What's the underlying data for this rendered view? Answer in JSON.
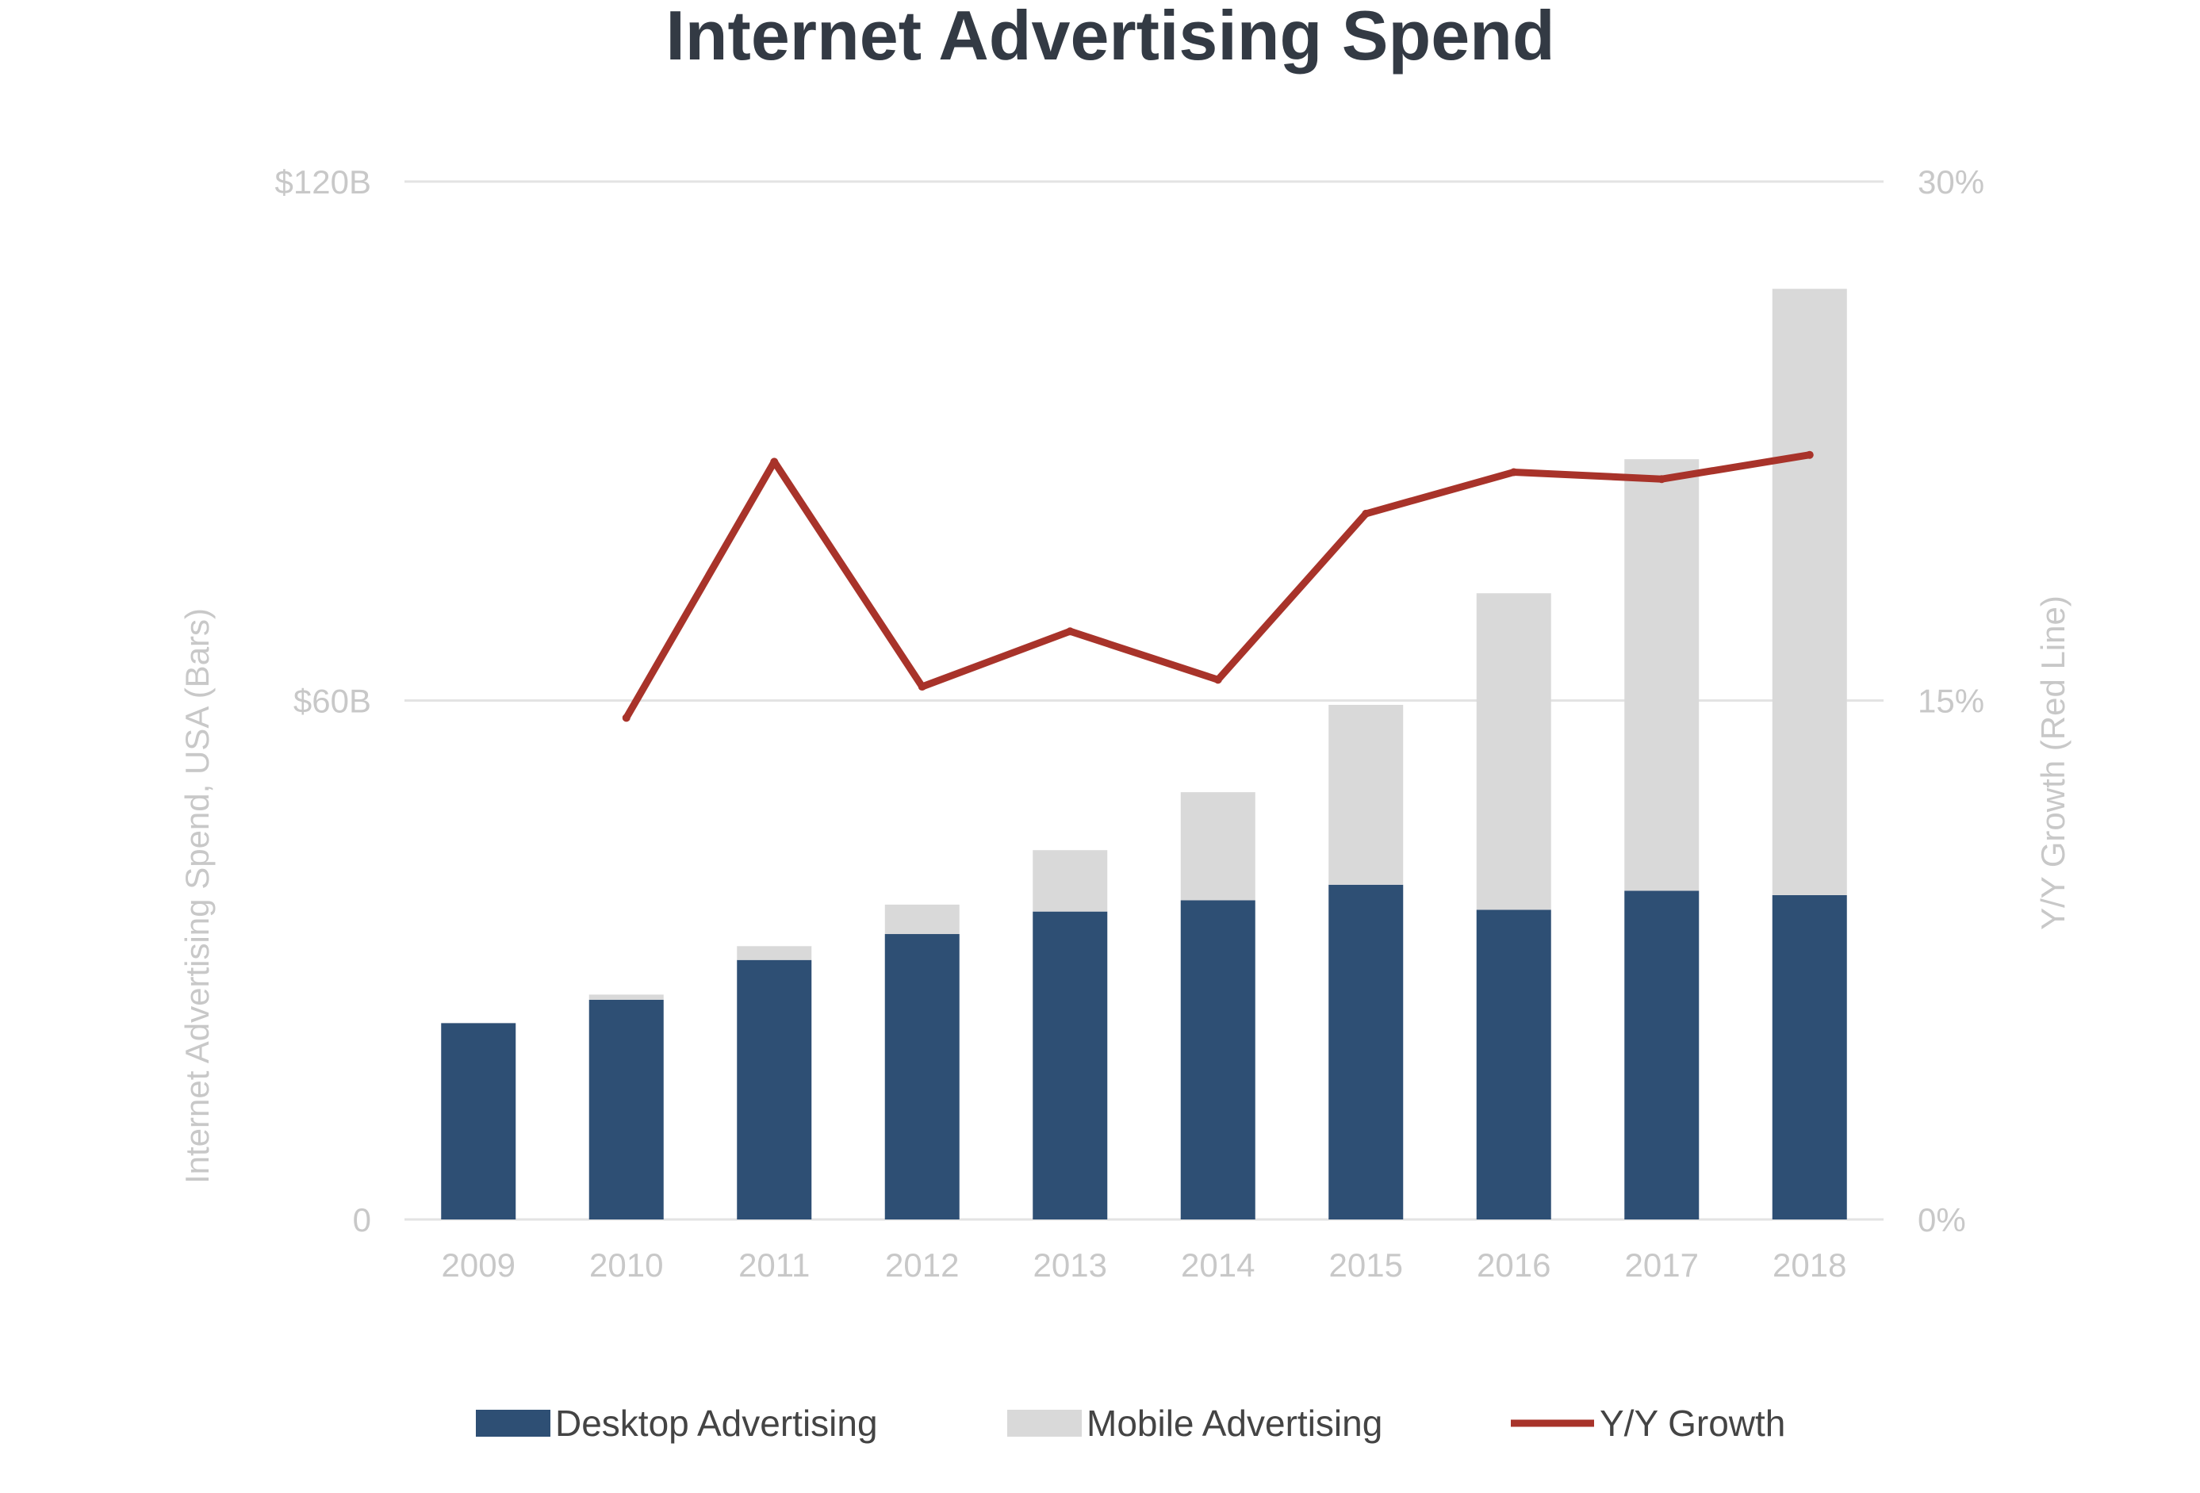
{
  "chart_data": {
    "type": "bar",
    "stacked": true,
    "title": "Internet Advertising Spend",
    "categories": [
      "2009",
      "2010",
      "2011",
      "2012",
      "2013",
      "2014",
      "2015",
      "2016",
      "2017",
      "2018"
    ],
    "series": [
      {
        "name": "Desktop Advertising",
        "type": "bar",
        "axis": "left",
        "color": "#2e4f74",
        "values": [
          22.7,
          25.4,
          30.0,
          33.0,
          35.6,
          36.9,
          38.7,
          35.8,
          38.0,
          37.5
        ]
      },
      {
        "name": "Mobile Advertising",
        "type": "bar",
        "axis": "left",
        "color": "#d9d9d9",
        "values": [
          0.0,
          0.6,
          1.6,
          3.4,
          7.1,
          12.5,
          20.8,
          36.6,
          49.9,
          70.1
        ]
      },
      {
        "name": "Y/Y Growth",
        "type": "line",
        "axis": "right",
        "color": "#a8332a",
        "values": [
          null,
          14.5,
          21.9,
          15.4,
          17.0,
          15.6,
          20.4,
          21.6,
          21.4,
          22.1
        ]
      }
    ],
    "y_left": {
      "label": "Internet Advertising Spend, USA (Bars)",
      "range": [
        0,
        120
      ],
      "ticks": [
        0,
        60,
        120
      ],
      "tick_labels": [
        "0",
        "$60B",
        "$120B"
      ]
    },
    "y_right": {
      "label": "Y/Y Growth (Red Line)",
      "range": [
        0,
        30
      ],
      "ticks": [
        0,
        15,
        30
      ],
      "tick_labels": [
        "0%",
        "15%",
        "30%"
      ]
    },
    "grid": true,
    "legend": {
      "position": "bottom",
      "entries": [
        "Desktop Advertising",
        "Mobile Advertising",
        "Y/Y Growth"
      ]
    }
  }
}
